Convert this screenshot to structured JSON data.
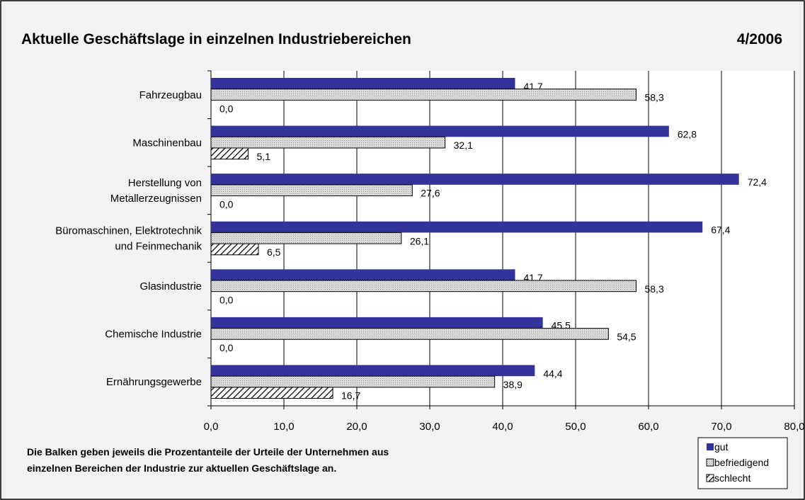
{
  "chart_data": {
    "type": "hbar",
    "title": "Aktuelle Geschäftslage in einzelnen Industriebereichen",
    "subtitle": "4/2006",
    "note": [
      "Die Balken geben jeweils die Prozentanteile der Urteile der Unternehmen aus",
      "einzelnen Bereichen der Industrie zur aktuellen Geschäftslage an."
    ],
    "categories": [
      "Fahrzeugbau",
      "Maschinenbau",
      "Herstellung von\nMetallerzeugnissen",
      "Büromaschinen, Elektrotechnik\nund Feinmechanik",
      "Glasindustrie",
      "Chemische Industrie",
      "Ernährungsgewerbe"
    ],
    "series": [
      {
        "name": "gut",
        "color": "#333399",
        "values": [
          41.7,
          62.8,
          72.4,
          67.4,
          41.7,
          45.5,
          44.4
        ],
        "value_labels": [
          "41,7",
          "62,8",
          "72,4",
          "67,4",
          "41,7",
          "45,5",
          "44,4"
        ]
      },
      {
        "name": "befriedigend",
        "color": "#cccccc",
        "pattern": "dotted",
        "values": [
          58.3,
          32.1,
          27.6,
          26.1,
          58.3,
          54.5,
          38.9
        ],
        "value_labels": [
          "58,3",
          "32,1",
          "27,6",
          "26,1",
          "58,3",
          "54,5",
          "38,9"
        ]
      },
      {
        "name": "schlecht",
        "color": "#ffffff",
        "pattern": "hatched",
        "values": [
          0.0,
          5.1,
          0.0,
          6.5,
          0.0,
          0.0,
          16.7
        ],
        "value_labels": [
          "0,0",
          "5,1",
          "0,0",
          "6,5",
          "0,0",
          "0,0",
          "16,7"
        ]
      }
    ],
    "xlim": [
      0,
      80
    ],
    "xticks": [
      {
        "value": 0,
        "label": "0,0"
      },
      {
        "value": 10,
        "label": "10,0"
      },
      {
        "value": 20,
        "label": "20,0"
      },
      {
        "value": 30,
        "label": "30,0"
      },
      {
        "value": 40,
        "label": "40,0"
      },
      {
        "value": 50,
        "label": "50,0"
      },
      {
        "value": 60,
        "label": "60,0"
      },
      {
        "value": 70,
        "label": "70,0"
      },
      {
        "value": 80,
        "label": "80,0"
      }
    ],
    "grid": true,
    "legend": "bottom-right"
  }
}
